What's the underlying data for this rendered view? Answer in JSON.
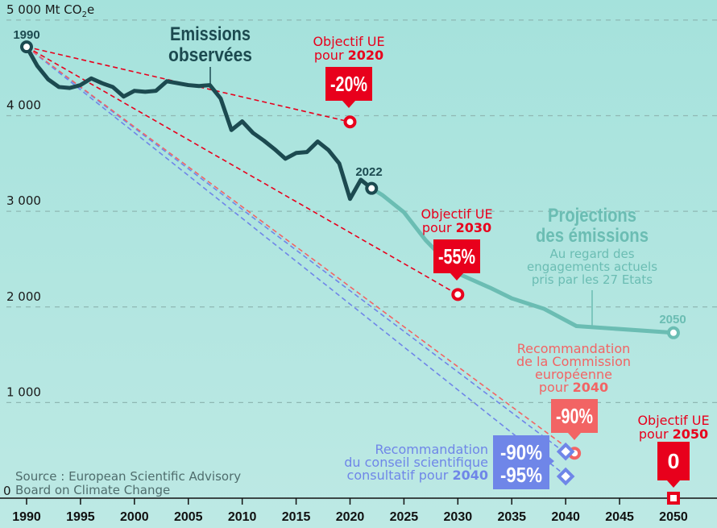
{
  "chart_data": {
    "type": "line",
    "ylabel": "Mt CO2e",
    "yunit_label": "5 000 Mt CO₂e",
    "ylim": [
      0,
      5000
    ],
    "xlim": [
      1988,
      2054
    ],
    "grid": true,
    "yticks": [
      {
        "value": 5000,
        "label": "5 000 Mt CO₂e"
      },
      {
        "value": 4000,
        "label": "4 000"
      },
      {
        "value": 3000,
        "label": "3 000"
      },
      {
        "value": 2000,
        "label": "2 000"
      },
      {
        "value": 1000,
        "label": "1 000"
      },
      {
        "value": 0,
        "label": "0"
      }
    ],
    "xticks": [
      1990,
      1995,
      2000,
      2005,
      2010,
      2015,
      2020,
      2025,
      2030,
      2035,
      2040,
      2045,
      2050
    ],
    "series": [
      {
        "name": "Emissions observées",
        "color": "#1c4a50",
        "x": [
          1990,
          1991,
          1992,
          1993,
          1994,
          1995,
          1996,
          1997,
          1998,
          1999,
          2000,
          2001,
          2002,
          2003,
          2004,
          2005,
          2006,
          2007,
          2008,
          2009,
          2010,
          2011,
          2012,
          2013,
          2014,
          2015,
          2016,
          2017,
          2018,
          2019,
          2020,
          2021,
          2022
        ],
        "y": [
          4720,
          4520,
          4380,
          4300,
          4290,
          4320,
          4390,
          4340,
          4300,
          4200,
          4260,
          4250,
          4260,
          4360,
          4340,
          4320,
          4310,
          4320,
          4180,
          3850,
          3940,
          3820,
          3740,
          3650,
          3550,
          3610,
          3620,
          3730,
          3640,
          3500,
          3130,
          3330,
          3240
        ]
      },
      {
        "name": "Projections des émissions",
        "color": "#6bbdb3",
        "x": [
          2022,
          2023,
          2025,
          2027,
          2030,
          2033,
          2035,
          2038,
          2041,
          2050
        ],
        "y": [
          3240,
          3170,
          2990,
          2700,
          2350,
          2200,
          2090,
          1980,
          1800,
          1730
        ]
      }
    ],
    "targets": [
      {
        "name": "Objectif UE pour 2020",
        "year": 2020,
        "value": 3935,
        "badge": "-20%",
        "color": "#e8001c"
      },
      {
        "name": "Objectif UE pour 2030",
        "year": 2030,
        "value": 2130,
        "badge": "-55%",
        "color": "#e8001c"
      },
      {
        "name": "Recommandation de la Commission européenne pour 2040",
        "year": 2040,
        "value": 470,
        "badge": "-90%",
        "color": "#f26464"
      },
      {
        "name": "Recommandation du conseil scientifique consultatif pour 2040 (-90%)",
        "year": 2040,
        "value": 470,
        "badge": "-90%",
        "color": "#6f86e8"
      },
      {
        "name": "Recommandation du conseil scientifique consultatif pour 2040 (-95%)",
        "year": 2040,
        "value": 236,
        "badge": "-95%",
        "color": "#6f86e8"
      },
      {
        "name": "Objectif UE pour 2050",
        "year": 2050,
        "value": 0,
        "badge": "0",
        "color": "#e8001c"
      }
    ],
    "annotations": {
      "start_label": "1990",
      "label_2022": "2022",
      "label_2050": "2050",
      "observed_title": [
        "Emissions",
        "observées"
      ],
      "projection_title": [
        "Projections",
        "des émissions"
      ],
      "projection_sub": [
        "Au regard des",
        "engagements actuels",
        "pris par les 27 Etats"
      ],
      "goal_2020": {
        "line1": "Objectif UE",
        "line2_prefix": "pour ",
        "line2_bold": "2020"
      },
      "goal_2030": {
        "line1": "Objectif UE",
        "line2_prefix": "pour ",
        "line2_bold": "2030"
      },
      "goal_2050": {
        "line1": "Objectif UE",
        "line2_prefix": "pour ",
        "line2_bold": "2050"
      },
      "commission_2040": {
        "lines": [
          "Recommandation",
          "de la Commission",
          "européenne"
        ],
        "last_prefix": "pour ",
        "last_bold": "2040"
      },
      "council_2040": {
        "lines": [
          "Recommandation",
          "du conseil scientifique"
        ],
        "last_prefix": "consultatif pour ",
        "last_bold": "2040"
      },
      "source": [
        "Source : European Scientific Advisory",
        "Board on Climate Change"
      ]
    },
    "colors": {
      "background_top": "#a5e2dc",
      "background_bottom": "#bde9e4",
      "observed": "#1c4a50",
      "projection": "#6bbdb3",
      "eu_red": "#e8001c",
      "commission_coral": "#f26464",
      "council_blue": "#6f86e8",
      "grid": "#8fb8b3",
      "source_text": "#4f6d6d"
    }
  }
}
